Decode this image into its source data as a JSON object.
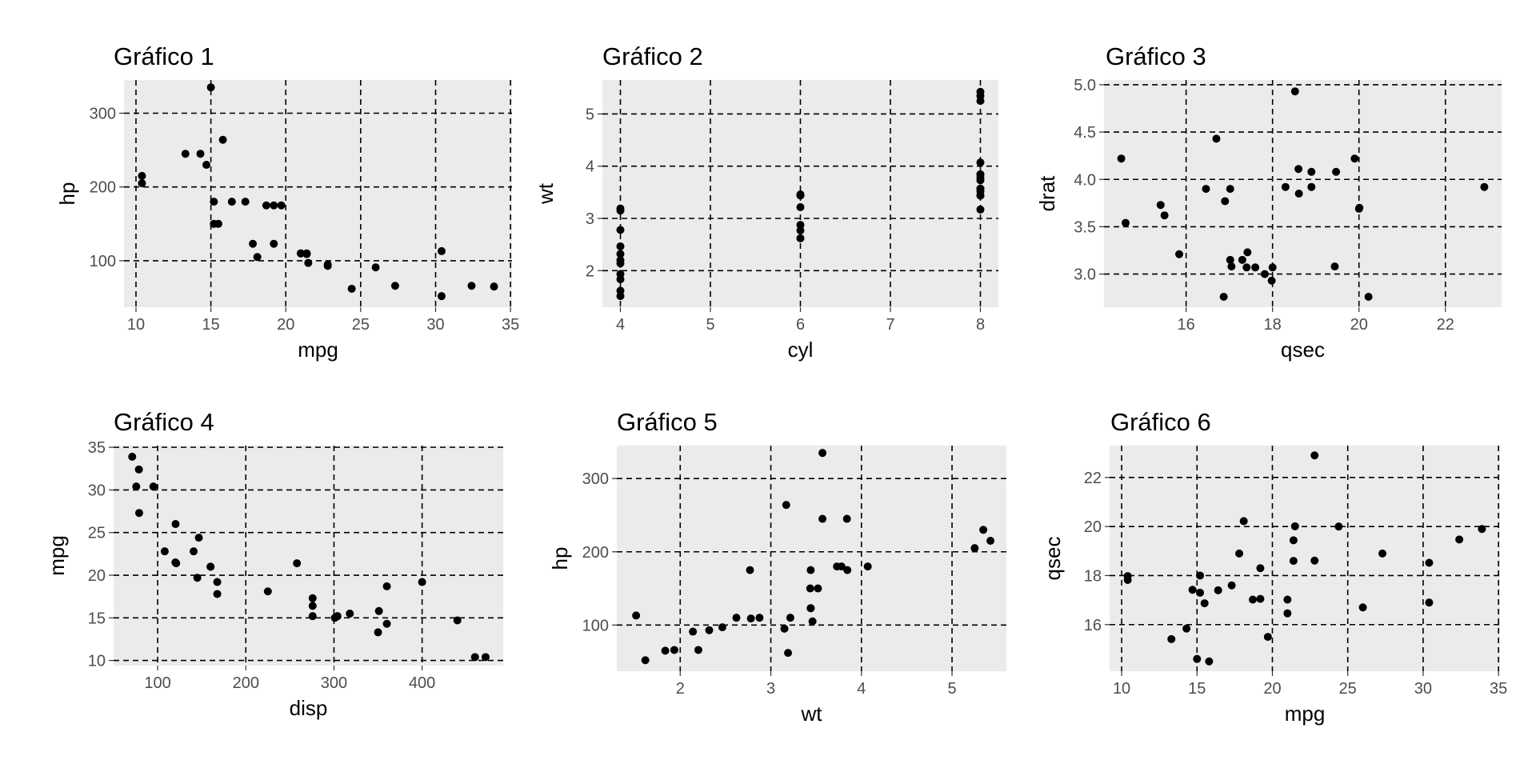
{
  "chart_data": [
    {
      "type": "scatter",
      "title": "Gráfico 1",
      "xlabel": "mpg",
      "ylabel": "hp",
      "xlim": [
        9.2,
        35.1
      ],
      "ylim": [
        37,
        345
      ],
      "xticks": [
        10,
        15,
        20,
        25,
        30,
        35
      ],
      "yticks": [
        100,
        200,
        300
      ],
      "grid": true,
      "points": [
        [
          21,
          110
        ],
        [
          21,
          110
        ],
        [
          22.8,
          93
        ],
        [
          21.4,
          110
        ],
        [
          18.7,
          175
        ],
        [
          18.1,
          105
        ],
        [
          14.3,
          245
        ],
        [
          24.4,
          62
        ],
        [
          22.8,
          95
        ],
        [
          19.2,
          123
        ],
        [
          17.8,
          123
        ],
        [
          16.4,
          180
        ],
        [
          17.3,
          180
        ],
        [
          15.2,
          180
        ],
        [
          10.4,
          205
        ],
        [
          10.4,
          215
        ],
        [
          14.7,
          230
        ],
        [
          32.4,
          66
        ],
        [
          30.4,
          52
        ],
        [
          33.9,
          65
        ],
        [
          21.5,
          97
        ],
        [
          15.5,
          150
        ],
        [
          15.2,
          150
        ],
        [
          13.3,
          245
        ],
        [
          19.2,
          175
        ],
        [
          27.3,
          66
        ],
        [
          26,
          91
        ],
        [
          30.4,
          113
        ],
        [
          15.8,
          264
        ],
        [
          19.7,
          175
        ],
        [
          15,
          335
        ],
        [
          21.4,
          109
        ]
      ]
    },
    {
      "type": "scatter",
      "title": "Gráfico 2",
      "xlabel": "cyl",
      "ylabel": "wt",
      "xlim": [
        3.8,
        8.2
      ],
      "ylim": [
        1.3,
        5.65
      ],
      "xticks": [
        4,
        5,
        6,
        7,
        8
      ],
      "yticks": [
        2,
        3,
        4,
        5
      ],
      "grid": true,
      "points": [
        [
          6,
          2.62
        ],
        [
          6,
          2.875
        ],
        [
          4,
          2.32
        ],
        [
          6,
          3.215
        ],
        [
          8,
          3.44
        ],
        [
          6,
          3.46
        ],
        [
          8,
          3.57
        ],
        [
          4,
          3.19
        ],
        [
          4,
          3.15
        ],
        [
          6,
          3.44
        ],
        [
          6,
          3.44
        ],
        [
          8,
          4.07
        ],
        [
          8,
          3.73
        ],
        [
          8,
          3.78
        ],
        [
          8,
          5.25
        ],
        [
          8,
          5.424
        ],
        [
          8,
          5.345
        ],
        [
          4,
          2.2
        ],
        [
          4,
          1.615
        ],
        [
          4,
          1.835
        ],
        [
          4,
          2.465
        ],
        [
          8,
          3.52
        ],
        [
          8,
          3.435
        ],
        [
          8,
          3.84
        ],
        [
          8,
          3.845
        ],
        [
          4,
          1.935
        ],
        [
          4,
          2.14
        ],
        [
          4,
          1.513
        ],
        [
          8,
          3.17
        ],
        [
          6,
          2.77
        ],
        [
          8,
          3.57
        ],
        [
          4,
          2.78
        ]
      ]
    },
    {
      "type": "scatter",
      "title": "Gráfico 3",
      "xlabel": "qsec",
      "ylabel": "drat",
      "xlim": [
        14.1,
        23.3
      ],
      "ylim": [
        2.65,
        5.05
      ],
      "xticks": [
        16,
        18,
        20,
        22
      ],
      "yticks": [
        "3.0",
        "3.5",
        "4.0",
        "4.5",
        "5.0"
      ],
      "grid": true,
      "points": [
        [
          16.46,
          3.9
        ],
        [
          17.02,
          3.9
        ],
        [
          18.61,
          3.85
        ],
        [
          19.44,
          3.08
        ],
        [
          17.02,
          3.15
        ],
        [
          20.22,
          2.76
        ],
        [
          15.84,
          3.21
        ],
        [
          20,
          3.69
        ],
        [
          22.9,
          3.92
        ],
        [
          18.3,
          3.92
        ],
        [
          18.9,
          3.92
        ],
        [
          17.4,
          3.07
        ],
        [
          17.6,
          3.07
        ],
        [
          18,
          3.07
        ],
        [
          17.98,
          2.93
        ],
        [
          17.82,
          3
        ],
        [
          17.42,
          3.23
        ],
        [
          19.47,
          4.08
        ],
        [
          18.52,
          4.93
        ],
        [
          19.9,
          4.22
        ],
        [
          20.01,
          3.7
        ],
        [
          16.87,
          2.76
        ],
        [
          17.3,
          3.15
        ],
        [
          15.41,
          3.73
        ],
        [
          17.05,
          3.08
        ],
        [
          18.9,
          4.08
        ],
        [
          16.7,
          4.43
        ],
        [
          16.9,
          3.77
        ],
        [
          14.5,
          4.22
        ],
        [
          15.5,
          3.62
        ],
        [
          14.6,
          3.54
        ],
        [
          18.6,
          4.11
        ]
      ]
    },
    {
      "type": "scatter",
      "title": "Gráfico 4",
      "xlabel": "disp",
      "ylabel": "mpg",
      "xlim": [
        50,
        492
      ],
      "ylim": [
        9.4,
        35.2
      ],
      "xticks": [
        100,
        200,
        300,
        400
      ],
      "yticks": [
        10,
        15,
        20,
        25,
        30,
        35
      ],
      "grid": true,
      "points": [
        [
          160,
          21
        ],
        [
          160,
          21
        ],
        [
          108,
          22.8
        ],
        [
          258,
          21.4
        ],
        [
          360,
          18.7
        ],
        [
          225,
          18.1
        ],
        [
          360,
          14.3
        ],
        [
          146.7,
          24.4
        ],
        [
          140.8,
          22.8
        ],
        [
          167.6,
          19.2
        ],
        [
          167.6,
          17.8
        ],
        [
          275.8,
          16.4
        ],
        [
          275.8,
          17.3
        ],
        [
          275.8,
          15.2
        ],
        [
          472,
          10.4
        ],
        [
          460,
          10.4
        ],
        [
          440,
          14.7
        ],
        [
          78.7,
          32.4
        ],
        [
          75.7,
          30.4
        ],
        [
          71.1,
          33.9
        ],
        [
          120.1,
          21.5
        ],
        [
          318,
          15.5
        ],
        [
          304,
          15.2
        ],
        [
          350,
          13.3
        ],
        [
          400,
          19.2
        ],
        [
          79,
          27.3
        ],
        [
          120.3,
          26
        ],
        [
          95.1,
          30.4
        ],
        [
          351,
          15.8
        ],
        [
          145,
          19.7
        ],
        [
          301,
          15
        ],
        [
          121,
          21.4
        ]
      ]
    },
    {
      "type": "scatter",
      "title": "Gráfico 5",
      "xlabel": "wt",
      "ylabel": "hp",
      "xlim": [
        1.3,
        5.6
      ],
      "ylim": [
        37,
        345
      ],
      "xticks": [
        2,
        3,
        4,
        5
      ],
      "yticks": [
        100,
        200,
        300
      ],
      "grid": true,
      "points": [
        [
          2.62,
          110
        ],
        [
          2.875,
          110
        ],
        [
          2.32,
          93
        ],
        [
          3.215,
          110
        ],
        [
          3.44,
          175
        ],
        [
          3.46,
          105
        ],
        [
          3.57,
          245
        ],
        [
          3.19,
          62
        ],
        [
          3.15,
          95
        ],
        [
          3.44,
          123
        ],
        [
          3.44,
          123
        ],
        [
          4.07,
          180
        ],
        [
          3.73,
          180
        ],
        [
          3.78,
          180
        ],
        [
          5.25,
          205
        ],
        [
          5.424,
          215
        ],
        [
          5.345,
          230
        ],
        [
          2.2,
          66
        ],
        [
          1.615,
          52
        ],
        [
          1.835,
          65
        ],
        [
          2.465,
          97
        ],
        [
          3.52,
          150
        ],
        [
          3.435,
          150
        ],
        [
          3.84,
          245
        ],
        [
          3.845,
          175
        ],
        [
          1.935,
          66
        ],
        [
          2.14,
          91
        ],
        [
          1.513,
          113
        ],
        [
          3.17,
          264
        ],
        [
          2.77,
          175
        ],
        [
          3.57,
          335
        ],
        [
          2.78,
          109
        ]
      ]
    },
    {
      "type": "scatter",
      "title": "Gráfico 6",
      "xlabel": "mpg",
      "ylabel": "qsec",
      "xlim": [
        9.2,
        35.1
      ],
      "ylim": [
        14.1,
        23.3
      ],
      "xticks": [
        10,
        15,
        20,
        25,
        30,
        35
      ],
      "yticks": [
        16,
        18,
        20,
        22
      ],
      "grid": true,
      "points": [
        [
          21,
          16.46
        ],
        [
          21,
          17.02
        ],
        [
          22.8,
          18.61
        ],
        [
          21.4,
          19.44
        ],
        [
          18.7,
          17.02
        ],
        [
          18.1,
          20.22
        ],
        [
          14.3,
          15.84
        ],
        [
          24.4,
          20
        ],
        [
          22.8,
          22.9
        ],
        [
          19.2,
          18.3
        ],
        [
          17.8,
          18.9
        ],
        [
          16.4,
          17.4
        ],
        [
          17.3,
          17.6
        ],
        [
          15.2,
          18
        ],
        [
          10.4,
          17.98
        ],
        [
          10.4,
          17.82
        ],
        [
          14.7,
          17.42
        ],
        [
          32.4,
          19.47
        ],
        [
          30.4,
          18.52
        ],
        [
          33.9,
          19.9
        ],
        [
          21.5,
          20.01
        ],
        [
          15.5,
          16.87
        ],
        [
          15.2,
          17.3
        ],
        [
          13.3,
          15.41
        ],
        [
          19.2,
          17.05
        ],
        [
          27.3,
          18.9
        ],
        [
          26,
          16.7
        ],
        [
          30.4,
          16.9
        ],
        [
          15.8,
          14.5
        ],
        [
          19.7,
          15.5
        ],
        [
          15,
          14.6
        ],
        [
          21.4,
          18.6
        ]
      ]
    }
  ]
}
